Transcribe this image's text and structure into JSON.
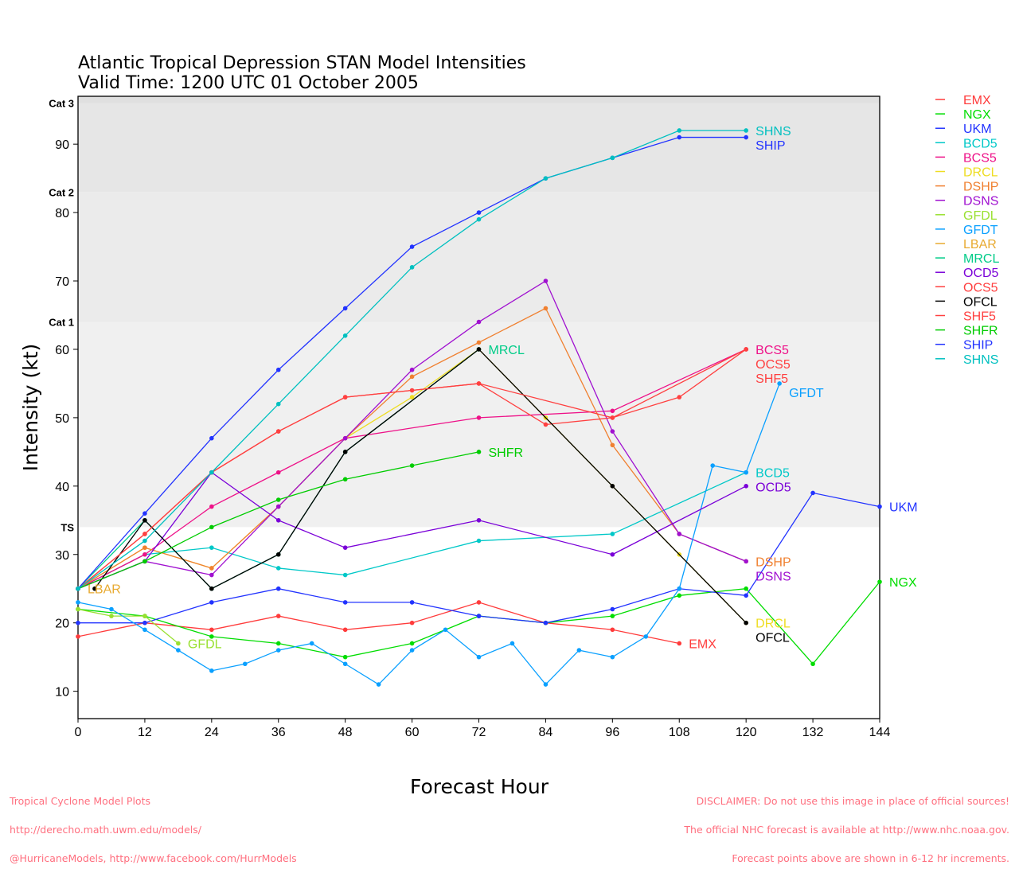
{
  "chart_data": {
    "type": "line",
    "title": "Atlantic Tropical Depression STAN Model Intensities",
    "subtitle": "Valid Time: 1200 UTC 01 October 2005",
    "xlabel": "Forecast Hour",
    "ylabel": "Intensity (kt)",
    "xlim": [
      0,
      144
    ],
    "ylim": [
      6,
      97
    ],
    "xticks": [
      0,
      12,
      24,
      36,
      48,
      60,
      72,
      84,
      96,
      108,
      120,
      132,
      144
    ],
    "yticks": [
      10,
      20,
      30,
      40,
      50,
      60,
      70,
      80,
      90
    ],
    "categories": [
      {
        "label": "TS",
        "value": 34,
        "color": "#f0f0f0"
      },
      {
        "label": "Cat 1",
        "value": 64,
        "color": "#ebebeb"
      },
      {
        "label": "Cat 2",
        "value": 83,
        "color": "#e6e6e6"
      },
      {
        "label": "Cat 3",
        "value": 96,
        "color": "#e2e2e2"
      }
    ],
    "legend_position": "right",
    "series": [
      {
        "name": "EMX",
        "color": "#ff3b3b",
        "points": [
          [
            0,
            18
          ],
          [
            12,
            20
          ],
          [
            24,
            19
          ],
          [
            36,
            21
          ],
          [
            48,
            19
          ],
          [
            60,
            20
          ],
          [
            72,
            23
          ],
          [
            84,
            20
          ],
          [
            96,
            19
          ],
          [
            108,
            17
          ]
        ]
      },
      {
        "name": "NGX",
        "color": "#00dd00",
        "points": [
          [
            0,
            22
          ],
          [
            12,
            21
          ],
          [
            24,
            18
          ],
          [
            36,
            17
          ],
          [
            48,
            15
          ],
          [
            60,
            17
          ],
          [
            72,
            21
          ],
          [
            84,
            20
          ],
          [
            96,
            21
          ],
          [
            108,
            24
          ],
          [
            120,
            25
          ],
          [
            132,
            14
          ],
          [
            144,
            26
          ]
        ]
      },
      {
        "name": "UKM",
        "color": "#2233ff",
        "points": [
          [
            0,
            20
          ],
          [
            12,
            20
          ],
          [
            24,
            23
          ],
          [
            36,
            25
          ],
          [
            48,
            23
          ],
          [
            60,
            23
          ],
          [
            72,
            21
          ],
          [
            84,
            20
          ],
          [
            96,
            22
          ],
          [
            108,
            25
          ],
          [
            120,
            24
          ],
          [
            132,
            39
          ],
          [
            144,
            37
          ]
        ]
      },
      {
        "name": "BCD5",
        "color": "#00c8c8",
        "points": [
          [
            0,
            25
          ],
          [
            12,
            30
          ],
          [
            24,
            31
          ],
          [
            36,
            28
          ],
          [
            48,
            27
          ],
          [
            72,
            32
          ],
          [
            96,
            33
          ],
          [
            120,
            42
          ]
        ]
      },
      {
        "name": "BCS5",
        "color": "#ee1188",
        "points": [
          [
            0,
            25
          ],
          [
            12,
            30
          ],
          [
            24,
            37
          ],
          [
            36,
            42
          ],
          [
            48,
            47
          ],
          [
            72,
            50
          ],
          [
            96,
            51
          ],
          [
            120,
            60
          ]
        ]
      },
      {
        "name": "DRCL",
        "color": "#eedd22",
        "points": [
          [
            0,
            25
          ],
          [
            12,
            31
          ],
          [
            24,
            28
          ],
          [
            36,
            37
          ],
          [
            48,
            47
          ],
          [
            60,
            53
          ],
          [
            72,
            60
          ],
          [
            84,
            50
          ],
          [
            96,
            40
          ],
          [
            108,
            30
          ],
          [
            120,
            20
          ]
        ]
      },
      {
        "name": "DSHP",
        "color": "#f08030",
        "points": [
          [
            0,
            25
          ],
          [
            12,
            31
          ],
          [
            24,
            28
          ],
          [
            36,
            37
          ],
          [
            48,
            47
          ],
          [
            60,
            56
          ],
          [
            72,
            61
          ],
          [
            84,
            66
          ],
          [
            96,
            46
          ],
          [
            108,
            33
          ],
          [
            120,
            29
          ]
        ]
      },
      {
        "name": "DSNS",
        "color": "#a010d0",
        "points": [
          [
            0,
            25
          ],
          [
            12,
            29
          ],
          [
            24,
            27
          ],
          [
            36,
            37
          ],
          [
            48,
            47
          ],
          [
            60,
            57
          ],
          [
            72,
            64
          ],
          [
            84,
            70
          ],
          [
            96,
            48
          ],
          [
            108,
            33
          ],
          [
            120,
            29
          ]
        ]
      },
      {
        "name": "GFDL",
        "color": "#99e030",
        "points": [
          [
            0,
            22
          ],
          [
            6,
            21
          ],
          [
            12,
            21
          ],
          [
            18,
            17
          ]
        ]
      },
      {
        "name": "GFDT",
        "color": "#0aa0ff",
        "points": [
          [
            0,
            23
          ],
          [
            6,
            22
          ],
          [
            12,
            19
          ],
          [
            18,
            16
          ],
          [
            24,
            13
          ],
          [
            30,
            14
          ],
          [
            36,
            16
          ],
          [
            42,
            17
          ],
          [
            48,
            14
          ],
          [
            54,
            11
          ],
          [
            60,
            16
          ],
          [
            66,
            19
          ],
          [
            72,
            15
          ],
          [
            78,
            17
          ],
          [
            84,
            11
          ],
          [
            90,
            16
          ],
          [
            96,
            15
          ],
          [
            102,
            18
          ],
          [
            108,
            25
          ],
          [
            114,
            43
          ],
          [
            120,
            42
          ],
          [
            126,
            55
          ]
        ]
      },
      {
        "name": "LBAR",
        "color": "#e8aa30",
        "points": [
          [
            0,
            25
          ]
        ]
      },
      {
        "name": "MRCL",
        "color": "#00cc88",
        "points": [
          [
            0,
            25
          ],
          [
            12,
            35
          ],
          [
            24,
            25
          ],
          [
            36,
            30
          ],
          [
            48,
            45
          ],
          [
            72,
            60
          ]
        ]
      },
      {
        "name": "OCD5",
        "color": "#7a00d8",
        "points": [
          [
            0,
            25
          ],
          [
            12,
            29
          ],
          [
            24,
            42
          ],
          [
            36,
            35
          ],
          [
            48,
            31
          ],
          [
            72,
            35
          ],
          [
            96,
            30
          ],
          [
            120,
            40
          ]
        ]
      },
      {
        "name": "OCS5",
        "color": "#ff4040",
        "points": [
          [
            0,
            25
          ],
          [
            12,
            33
          ],
          [
            24,
            42
          ],
          [
            36,
            48
          ],
          [
            48,
            53
          ],
          [
            60,
            54
          ],
          [
            72,
            55
          ],
          [
            84,
            49
          ],
          [
            96,
            50
          ],
          [
            108,
            53
          ],
          [
            120,
            60
          ]
        ]
      },
      {
        "name": "OFCL",
        "color": "#000000",
        "points": [
          [
            3,
            25
          ],
          [
            12,
            35
          ],
          [
            24,
            25
          ],
          [
            36,
            30
          ],
          [
            48,
            45
          ],
          [
            72,
            60
          ],
          [
            96,
            40
          ],
          [
            120,
            20
          ]
        ]
      },
      {
        "name": "SHF5",
        "color": "#ff4040",
        "points": [
          [
            0,
            25
          ],
          [
            12,
            33
          ],
          [
            24,
            42
          ],
          [
            36,
            48
          ],
          [
            48,
            53
          ],
          [
            72,
            55
          ],
          [
            96,
            50
          ],
          [
            120,
            60
          ]
        ]
      },
      {
        "name": "SHFR",
        "color": "#00cc00",
        "points": [
          [
            0,
            25
          ],
          [
            12,
            29
          ],
          [
            24,
            34
          ],
          [
            36,
            38
          ],
          [
            48,
            41
          ],
          [
            60,
            43
          ],
          [
            72,
            45
          ]
        ]
      },
      {
        "name": "SHIP",
        "color": "#2233ff",
        "points": [
          [
            0,
            25
          ],
          [
            12,
            36
          ],
          [
            24,
            47
          ],
          [
            36,
            57
          ],
          [
            48,
            66
          ],
          [
            60,
            75
          ],
          [
            72,
            80
          ],
          [
            84,
            85
          ],
          [
            96,
            88
          ],
          [
            108,
            91
          ],
          [
            120,
            91
          ]
        ]
      },
      {
        "name": "SHNS",
        "color": "#00c0c0",
        "points": [
          [
            0,
            25
          ],
          [
            12,
            32
          ],
          [
            24,
            42
          ],
          [
            36,
            52
          ],
          [
            48,
            62
          ],
          [
            60,
            72
          ],
          [
            72,
            79
          ],
          [
            84,
            85
          ],
          [
            96,
            88
          ],
          [
            108,
            92
          ],
          [
            120,
            92
          ]
        ]
      }
    ]
  },
  "footer": {
    "left": [
      "Tropical Cyclone Model Plots",
      "http://derecho.math.uwm.edu/models/",
      "@HurricaneModels, http://www.facebook.com/HurrModels"
    ],
    "right": [
      "DISCLAIMER: Do not use this image in place of official sources!",
      "The official NHC forecast is available at http://www.nhc.noaa.gov.",
      "Forecast points above are shown in 6-12 hr increments."
    ]
  }
}
